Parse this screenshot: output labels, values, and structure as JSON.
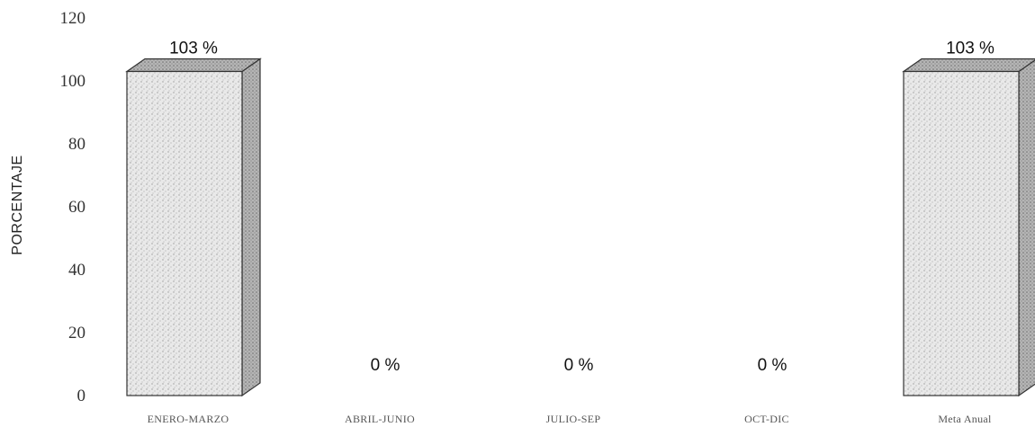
{
  "chart_data": {
    "type": "bar",
    "ylabel": "PORCENTAJE",
    "ylim": [
      0,
      120
    ],
    "yticks": [
      0,
      20,
      40,
      60,
      80,
      100,
      120
    ],
    "categories": [
      "ENERO-MARZO",
      "ABRIL-JUNIO",
      "JULIO-SEP",
      "OCT-DIC",
      "Meta Anual"
    ],
    "values": [
      103,
      0,
      0,
      0,
      103
    ],
    "data_labels": [
      "103 %",
      "0 %",
      "0 %",
      "0 %",
      "103 %"
    ],
    "grid": false,
    "colors": {
      "bar_face": "#e6e6e6",
      "bar_side": "#a8a8a8",
      "bar_top": "#cfcfcf",
      "outline": "#333333"
    }
  }
}
